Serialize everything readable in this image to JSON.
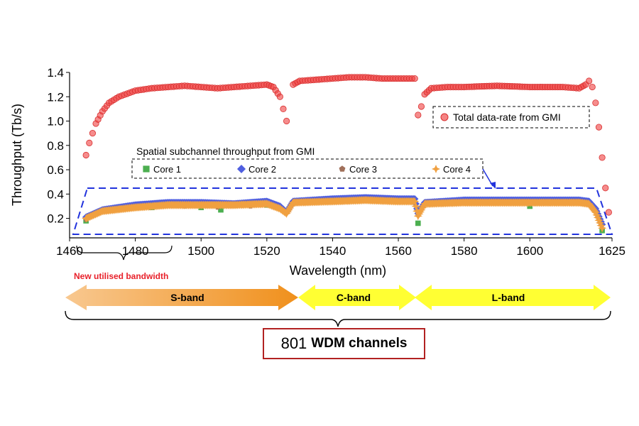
{
  "chart_data": {
    "type": "scatter",
    "xlabel": "Wavelength (nm)",
    "ylabel": "Throughput (Tb/s)",
    "xlim": [
      1460,
      1625
    ],
    "ylim": [
      0.04,
      1.4
    ],
    "x_ticks": [
      "1460",
      "1480",
      "1500",
      "1520",
      "1540",
      "1560",
      "1580",
      "1600",
      "1625"
    ],
    "y_ticks": [
      "0.2",
      "0.4",
      "0.6",
      "0.8",
      "1.0",
      "1.2",
      "1.4"
    ],
    "grid": false,
    "total_legend": "Total data-rate from GMI",
    "sub_legend_title": "Spatial subchannel throughput from GMI",
    "series": [
      {
        "name": "Total data-rate from GMI",
        "color": "#f04040",
        "marker": "circle",
        "points": [
          [
            1465,
            0.72
          ],
          [
            1466,
            0.82
          ],
          [
            1467,
            0.9
          ],
          [
            1468,
            0.98
          ],
          [
            1470,
            1.08
          ],
          [
            1472,
            1.15
          ],
          [
            1475,
            1.2
          ],
          [
            1480,
            1.25
          ],
          [
            1485,
            1.27
          ],
          [
            1490,
            1.28
          ],
          [
            1495,
            1.29
          ],
          [
            1500,
            1.28
          ],
          [
            1505,
            1.27
          ],
          [
            1510,
            1.28
          ],
          [
            1515,
            1.29
          ],
          [
            1520,
            1.3
          ],
          [
            1522,
            1.28
          ],
          [
            1524,
            1.2
          ],
          [
            1525,
            1.1
          ],
          [
            1526,
            1.0
          ],
          [
            1528,
            1.3
          ],
          [
            1530,
            1.33
          ],
          [
            1535,
            1.34
          ],
          [
            1540,
            1.35
          ],
          [
            1545,
            1.36
          ],
          [
            1550,
            1.36
          ],
          [
            1555,
            1.35
          ],
          [
            1560,
            1.35
          ],
          [
            1565,
            1.35
          ],
          [
            1566,
            1.05
          ],
          [
            1567,
            1.12
          ],
          [
            1568,
            1.22
          ],
          [
            1570,
            1.27
          ],
          [
            1575,
            1.28
          ],
          [
            1580,
            1.28
          ],
          [
            1590,
            1.29
          ],
          [
            1600,
            1.28
          ],
          [
            1610,
            1.28
          ],
          [
            1615,
            1.27
          ],
          [
            1617,
            1.3
          ],
          [
            1618,
            1.33
          ],
          [
            1619,
            1.28
          ],
          [
            1620,
            1.15
          ],
          [
            1621,
            0.95
          ],
          [
            1622,
            0.7
          ],
          [
            1623,
            0.45
          ],
          [
            1624,
            0.25
          ]
        ]
      },
      {
        "name": "Core 1",
        "color": "#4caf50",
        "marker": "square",
        "points": [
          [
            1465,
            0.18
          ],
          [
            1485,
            0.29
          ],
          [
            1500,
            0.29
          ],
          [
            1506,
            0.27
          ],
          [
            1520,
            0.31
          ],
          [
            1566,
            0.16
          ],
          [
            1600,
            0.3
          ],
          [
            1622,
            0.1
          ]
        ]
      },
      {
        "name": "Core 2",
        "color": "#4f5fe0",
        "marker": "diamond",
        "points": [
          [
            1465,
            0.21
          ],
          [
            1470,
            0.27
          ],
          [
            1480,
            0.31
          ],
          [
            1490,
            0.33
          ],
          [
            1500,
            0.33
          ],
          [
            1510,
            0.32
          ],
          [
            1520,
            0.34
          ],
          [
            1524,
            0.3
          ],
          [
            1526,
            0.25
          ],
          [
            1528,
            0.34
          ],
          [
            1540,
            0.36
          ],
          [
            1550,
            0.37
          ],
          [
            1560,
            0.36
          ],
          [
            1565,
            0.36
          ],
          [
            1566,
            0.24
          ],
          [
            1568,
            0.33
          ],
          [
            1580,
            0.35
          ],
          [
            1600,
            0.35
          ],
          [
            1615,
            0.35
          ],
          [
            1618,
            0.34
          ],
          [
            1620,
            0.28
          ],
          [
            1622,
            0.15
          ]
        ]
      },
      {
        "name": "Core 3",
        "color": "#a0705a",
        "marker": "pentagon",
        "points": [
          [
            1465,
            0.19
          ],
          [
            1480,
            0.29
          ],
          [
            1495,
            0.3
          ],
          [
            1505,
            0.29
          ],
          [
            1515,
            0.3
          ],
          [
            1540,
            0.34
          ],
          [
            1580,
            0.33
          ],
          [
            1617,
            0.33
          ],
          [
            1621,
            0.2
          ]
        ]
      },
      {
        "name": "Core 4",
        "color": "#f0a040",
        "marker": "star",
        "points": [
          [
            1465,
            0.2
          ],
          [
            1470,
            0.26
          ],
          [
            1480,
            0.29
          ],
          [
            1490,
            0.31
          ],
          [
            1500,
            0.31
          ],
          [
            1510,
            0.31
          ],
          [
            1520,
            0.32
          ],
          [
            1524,
            0.28
          ],
          [
            1526,
            0.24
          ],
          [
            1528,
            0.33
          ],
          [
            1540,
            0.34
          ],
          [
            1550,
            0.35
          ],
          [
            1560,
            0.34
          ],
          [
            1565,
            0.34
          ],
          [
            1566,
            0.22
          ],
          [
            1568,
            0.32
          ],
          [
            1580,
            0.33
          ],
          [
            1600,
            0.33
          ],
          [
            1615,
            0.33
          ],
          [
            1618,
            0.32
          ],
          [
            1620,
            0.25
          ],
          [
            1622,
            0.12
          ]
        ]
      }
    ],
    "annotations": {
      "new_bandwidth": "New utilised bandwidth",
      "new_bandwidth_color": "#e8202a",
      "bands": [
        {
          "label": "S-band",
          "color": "#f3a040"
        },
        {
          "label": "C-band",
          "color": "#ffff33"
        },
        {
          "label": "L-band",
          "color": "#ffff33"
        }
      ],
      "channels_number": "801",
      "channels_text": "WDM channels",
      "channels_border_color": "#b22222"
    }
  }
}
